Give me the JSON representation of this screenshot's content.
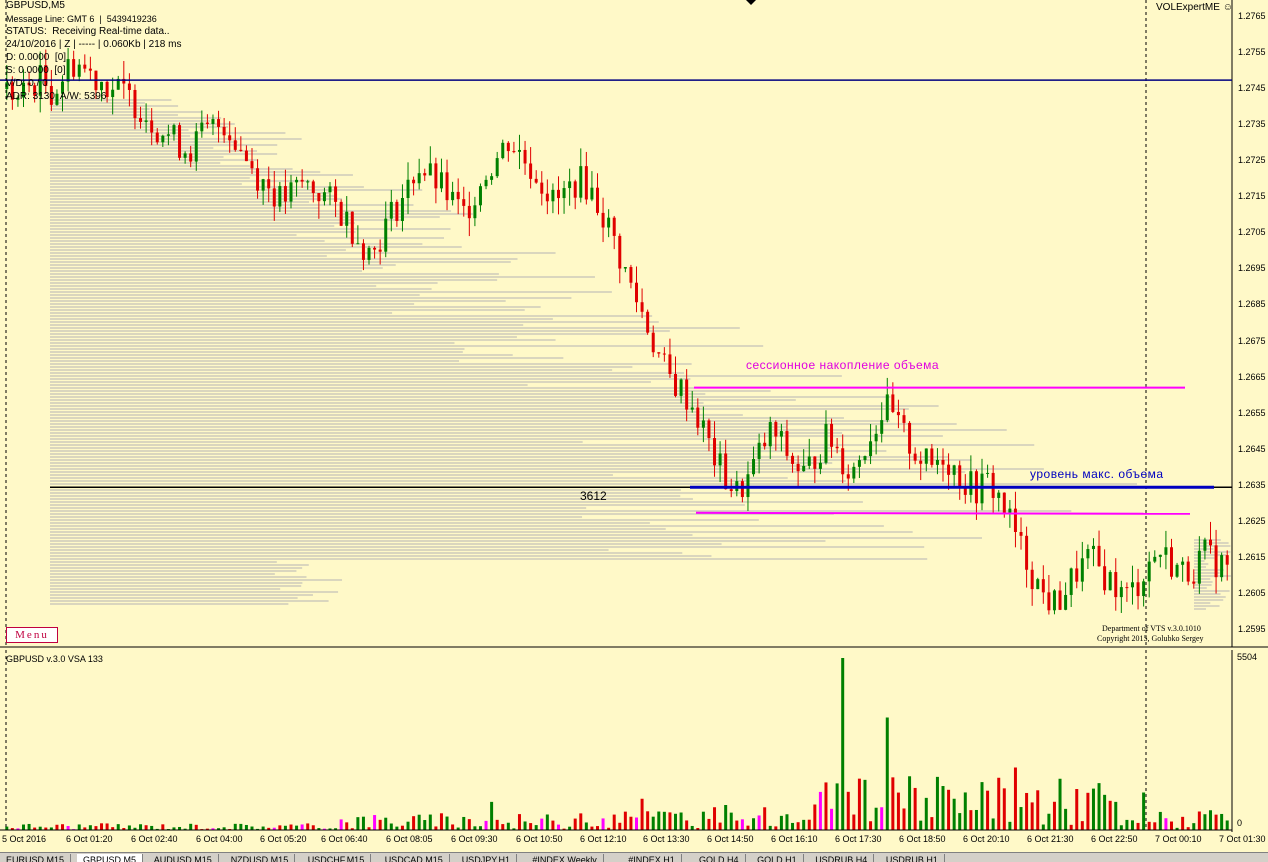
{
  "chart_data": {
    "type": "candlestick",
    "symbol": "GBPUSD,M5",
    "info": {
      "symbol_label": "GBPUSD,M5",
      "message_line": "Message Line: GMT 6  |  5439419236",
      "status": "STATUS:  Receiving Real-time data..",
      "date_line": "24/10/2016 | Z | ----- | 0.060Kb | 218 ms",
      "d_line": "D: 0.0000  [0]",
      "s_line": "S: 0.0000  [0]",
      "vd_line": "V/D: 0 / 0",
      "adr_line": "ADR: 3130  A/W: 5396"
    },
    "price_ticks": [
      "1.2765",
      "1.2755",
      "1.2745",
      "1.2735",
      "1.2725",
      "1.2715",
      "1.2705",
      "1.2695",
      "1.2685",
      "1.2675",
      "1.2665",
      "1.2655",
      "1.2645",
      "1.2635",
      "1.2625",
      "1.2615",
      "1.2605",
      "1.2595"
    ],
    "price_range": [
      1.259,
      1.277
    ],
    "time_ticks": [
      "5 Oct 2016",
      "6 Oct 01:20",
      "6 Oct 02:40",
      "6 Oct 04:00",
      "6 Oct 05:20",
      "6 Oct 06:40",
      "6 Oct 08:05",
      "6 Oct 09:30",
      "6 Oct 10:50",
      "6 Oct 12:10",
      "6 Oct 13:30",
      "6 Oct 14:50",
      "6 Oct 16:10",
      "6 Oct 17:30",
      "6 Oct 18:50",
      "6 Oct 20:10",
      "6 Oct 21:30",
      "6 Oct 22:50",
      "7 Oct 00:10",
      "7 Oct 01:30"
    ],
    "close_path": [
      1.2745,
      1.2742,
      1.2746,
      1.2748,
      1.2744,
      1.2749,
      1.2753,
      1.275,
      1.2748,
      1.2746,
      1.2744,
      1.2742,
      1.2739,
      1.2735,
      1.2733,
      1.273,
      1.2728,
      1.2732,
      1.2734,
      1.2736,
      1.2731,
      1.2726,
      1.2721,
      1.2718,
      1.2714,
      1.2716,
      1.2719,
      1.2717,
      1.2715,
      1.2712,
      1.2708,
      1.2703,
      1.2699,
      1.2706,
      1.2712,
      1.2716,
      1.2724,
      1.2721,
      1.2718,
      1.2714,
      1.271,
      1.2716,
      1.2722,
      1.2726,
      1.2731,
      1.2727,
      1.2723,
      1.2719,
      1.2713,
      1.2716,
      1.272,
      1.2718,
      1.2712,
      1.2705,
      1.2696,
      1.2688,
      1.2681,
      1.2672,
      1.2665,
      1.2662,
      1.2658,
      1.2651,
      1.2643,
      1.2637,
      1.2633,
      1.2637,
      1.2644,
      1.265,
      1.2646,
      1.2641,
      1.2638,
      1.2644,
      1.2649,
      1.2644,
      1.2638,
      1.2645,
      1.2651,
      1.2657,
      1.2652,
      1.2647,
      1.2643,
      1.264,
      1.2644,
      1.264,
      1.2636,
      1.2634,
      1.2636,
      1.2632,
      1.2625,
      1.2617,
      1.261,
      1.2604,
      1.2602,
      1.2607,
      1.2612,
      1.2615,
      1.2611,
      1.2608,
      1.2604,
      1.2607,
      1.2613,
      1.2617,
      1.2614,
      1.2611,
      1.2612,
      1.2616,
      1.2614,
      1.2613
    ],
    "max_volume_label": "3612",
    "max_volume_price": 1.26346,
    "session_high": 1.26622,
    "session_low": 1.26275,
    "upper_line_price": 1.27475,
    "annotations": {
      "session": "сессионное накопление объема",
      "max_volume": "уровень макс. объема"
    },
    "volume_panel": {
      "title": "GBPUSD v.3.0 VSA 133",
      "max_label": "5504",
      "zero_label": "0",
      "ylim": [
        0,
        5504
      ]
    },
    "footer": {
      "line1": "Department of VTS  v.3.0.1010",
      "line2": "Copyright 2015, Golubko Sergey"
    },
    "expert_label": "VOLExpertME"
  },
  "menu_label": "Menu",
  "tabs": [
    "EURUSD,M15",
    "GBPUSD,M5",
    "AUDUSD,M15",
    "NZDUSD,M15",
    "USDCHF,M15",
    "USDCAD,M15",
    "USDJPY,H1",
    "#INDEX,Weekly",
    "#INDEX,H1",
    "GOLD,H4",
    "GOLD,H1",
    "USDRUB,H4",
    "USDRUB,H1"
  ],
  "colors": {
    "background": "#fff9c8",
    "bull": "#008000",
    "bear": "#e00000",
    "session_lines": "#ff00ff",
    "max_volume_line": "#0000c0",
    "top_line": "#000080"
  }
}
